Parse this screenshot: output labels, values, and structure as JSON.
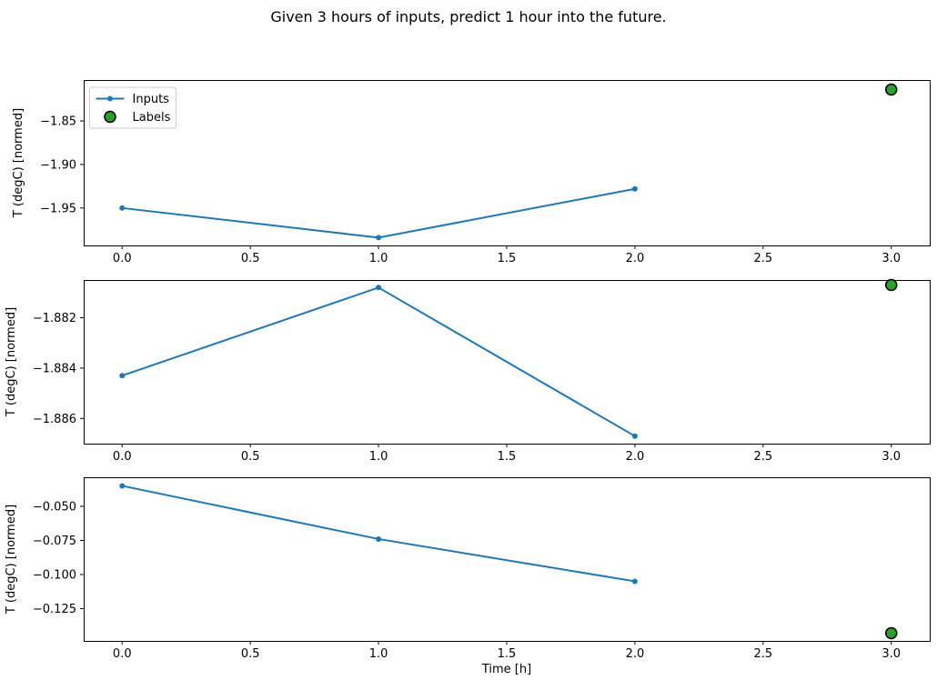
{
  "title": "Given 3 hours of inputs, predict 1 hour into the future.",
  "xlabel": "Time [h]",
  "colors": {
    "inputs_line": "#1f77b4",
    "labels_fill": "#2ca02c",
    "labels_edge": "#000000",
    "axis": "#000000",
    "text": "#000000",
    "legend_border": "#cccccc",
    "background": "#ffffff"
  },
  "legend": {
    "position": "upper left",
    "items": [
      {
        "label": "Inputs",
        "marker": "line-dot"
      },
      {
        "label": "Labels",
        "marker": "circle"
      }
    ]
  },
  "chart_data": [
    {
      "type": "line",
      "ylabel": "T (degC) [normed]",
      "x": [
        0.0,
        1.0,
        2.0
      ],
      "series": [
        {
          "name": "Inputs",
          "values": [
            -1.95,
            -1.984,
            -1.928
          ]
        }
      ],
      "labels_point": {
        "name": "Labels",
        "x": 3.0,
        "y": -1.814
      },
      "xlim": [
        -0.15,
        3.15
      ],
      "ylim": [
        -1.993,
        -1.803
      ],
      "xticks": {
        "values": [
          0,
          0.5,
          1,
          1.5,
          2,
          2.5,
          3
        ],
        "labels": [
          "0.0",
          "0.5",
          "1.0",
          "1.5",
          "2.0",
          "2.5",
          "3.0"
        ]
      },
      "yticks": {
        "values": [
          -1.85,
          -1.9,
          -1.95
        ],
        "labels": [
          "−1.85",
          "−1.90",
          "−1.95"
        ]
      },
      "legend_visible": true,
      "grid": false
    },
    {
      "type": "line",
      "ylabel": "T (degC) [normed]",
      "x": [
        0.0,
        1.0,
        2.0
      ],
      "series": [
        {
          "name": "Inputs",
          "values": [
            -1.8843,
            -1.8808,
            -1.8867
          ]
        }
      ],
      "labels_point": {
        "name": "Labels",
        "x": 3.0,
        "y": -1.8807
      },
      "xlim": [
        -0.15,
        3.15
      ],
      "ylim": [
        -1.887,
        -1.8805
      ],
      "xticks": {
        "values": [
          0,
          0.5,
          1,
          1.5,
          2,
          2.5,
          3
        ],
        "labels": [
          "0.0",
          "0.5",
          "1.0",
          "1.5",
          "2.0",
          "2.5",
          "3.0"
        ]
      },
      "yticks": {
        "values": [
          -1.882,
          -1.884,
          -1.886
        ],
        "labels": [
          "−1.882",
          "−1.884",
          "−1.886"
        ]
      },
      "legend_visible": false,
      "grid": false
    },
    {
      "type": "line",
      "ylabel": "T (degC) [normed]",
      "x": [
        0.0,
        1.0,
        2.0
      ],
      "series": [
        {
          "name": "Inputs",
          "values": [
            -0.035,
            -0.074,
            -0.105
          ]
        }
      ],
      "labels_point": {
        "name": "Labels",
        "x": 3.0,
        "y": -0.143
      },
      "xlim": [
        -0.15,
        3.15
      ],
      "ylim": [
        -0.1487,
        -0.0287
      ],
      "xticks": {
        "values": [
          0,
          0.5,
          1,
          1.5,
          2,
          2.5,
          3
        ],
        "labels": [
          "0.0",
          "0.5",
          "1.0",
          "1.5",
          "2.0",
          "2.5",
          "3.0"
        ]
      },
      "yticks": {
        "values": [
          -0.05,
          -0.075,
          -0.1,
          -0.125
        ],
        "labels": [
          "−0.050",
          "−0.075",
          "−0.100",
          "−0.125"
        ]
      },
      "legend_visible": false,
      "grid": false
    }
  ]
}
